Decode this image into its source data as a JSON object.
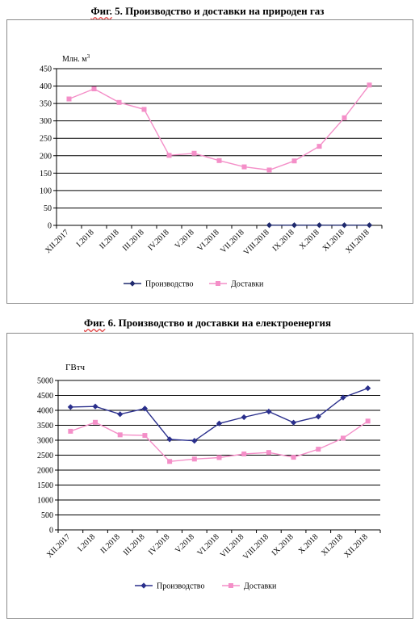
{
  "chart_data": [
    {
      "type": "line",
      "title_prefix": "Фиг.",
      "title_rest": " 5. Производство и доставки на природен газ",
      "ylabel": "Млн. м",
      "ylabel_sup": "3",
      "categories": [
        "XII.2017",
        "I.2018",
        "II.2018",
        "III.2018",
        "IV.2018",
        "V.2018",
        "VI.2018",
        "VII.2018",
        "VIII.2018",
        "IX.2018",
        "X.2018",
        "XI.2018",
        "XII.2018"
      ],
      "yticks": [
        "0",
        "50",
        "100",
        "150",
        "200",
        "250",
        "300",
        "350",
        "400",
        "450"
      ],
      "ylim": [
        0,
        450
      ],
      "grid": true,
      "legend_position": "bottom",
      "series": [
        {
          "name": "Производство",
          "color": "#1f2a6e",
          "marker": "diamond",
          "values": [
            null,
            null,
            null,
            null,
            null,
            null,
            null,
            null,
            0.5,
            0.5,
            0.5,
            0.5,
            0.5
          ]
        },
        {
          "name": "Доставки",
          "color": "#f48fc8",
          "marker": "square",
          "values": [
            363,
            392,
            353,
            333,
            201,
            207,
            186,
            168,
            159,
            185,
            227,
            309,
            403
          ]
        }
      ]
    },
    {
      "type": "line",
      "title_prefix": "Фиг.",
      "title_rest": " 6. Производство и доставки на електроенергия",
      "ylabel": "ГВтч",
      "ylabel_sup": "",
      "categories": [
        "XII.2017",
        "I.2018",
        "II.2018",
        "III.2018",
        "IV.2018",
        "V.2018",
        "VI.2018",
        "VII.2018",
        "VIII.2018",
        "IX.2018",
        "X.2018",
        "XI.2018",
        "XII.2018"
      ],
      "yticks": [
        "0",
        "500",
        "1000",
        "1500",
        "2000",
        "2500",
        "3000",
        "3500",
        "4000",
        "4500",
        "5000"
      ],
      "ylim": [
        0,
        5000
      ],
      "grid": true,
      "legend_position": "bottom",
      "series": [
        {
          "name": "Производство",
          "color": "#2a2f8c",
          "marker": "diamond",
          "values": [
            4110,
            4130,
            3870,
            4060,
            3030,
            2980,
            3560,
            3770,
            3960,
            3590,
            3790,
            4430,
            4740
          ]
        },
        {
          "name": "Доставки",
          "color": "#f48fc8",
          "marker": "square",
          "values": [
            3300,
            3600,
            3180,
            3160,
            2290,
            2370,
            2420,
            2540,
            2590,
            2430,
            2700,
            3070,
            3640
          ]
        }
      ]
    }
  ]
}
